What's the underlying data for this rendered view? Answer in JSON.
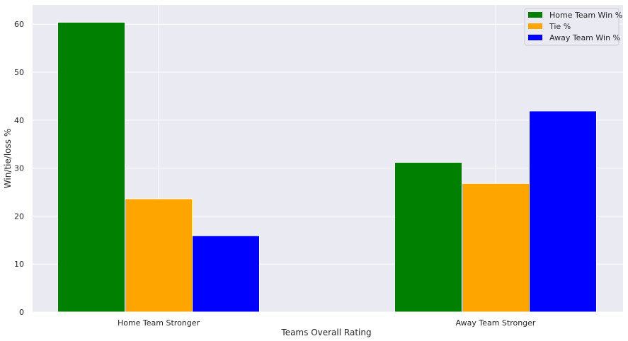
{
  "chart_data": {
    "type": "bar",
    "categories": [
      "Home Team Stronger",
      "Away Team Stronger"
    ],
    "series": [
      {
        "name": "Home Team Win %",
        "values": [
          60.4,
          31.2
        ],
        "color": "#008000"
      },
      {
        "name": "Tie %",
        "values": [
          23.6,
          26.8
        ],
        "color": "#ffa500"
      },
      {
        "name": "Away Team Win %",
        "values": [
          15.9,
          41.9
        ],
        "color": "#0000ff"
      }
    ],
    "title": "",
    "xlabel": "Teams Overall Rating",
    "ylabel": "Win/tie/loss %",
    "ylim": [
      0,
      64
    ],
    "yticks": [
      0,
      10,
      20,
      30,
      40,
      50,
      60
    ],
    "grid": true,
    "legend_position": "top-right",
    "background": "#eaeaf2",
    "grid_color": "#ffffff"
  }
}
